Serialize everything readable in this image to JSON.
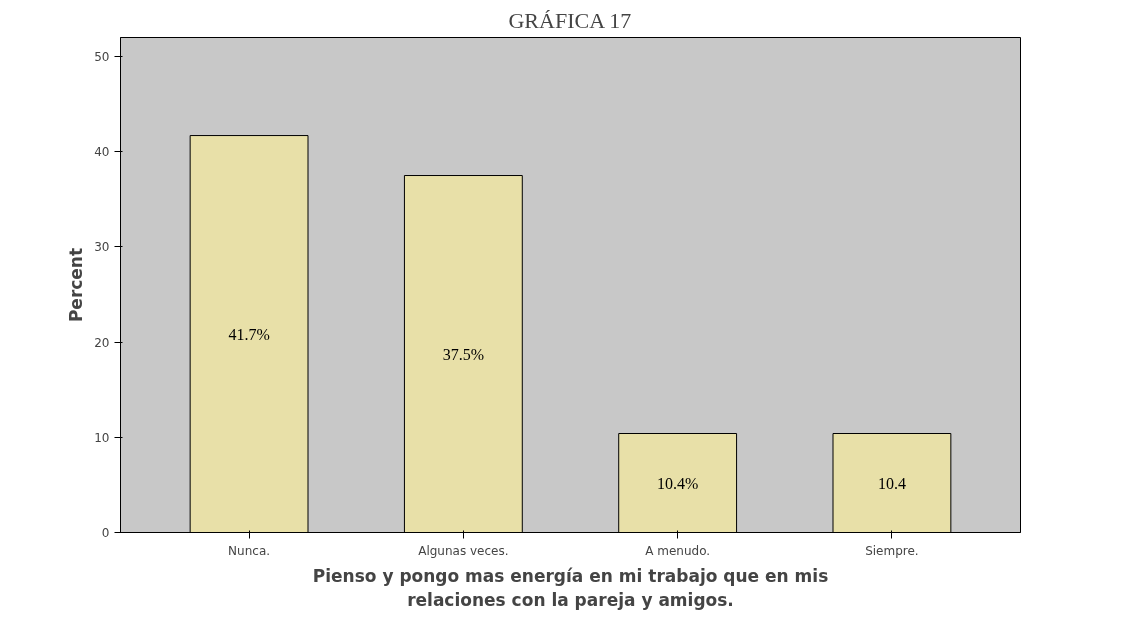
{
  "chart_data": {
    "type": "bar",
    "title": "GRÁFICA 17",
    "ylabel": "Percent",
    "xlabel": "Pienso y pongo mas energía en mi trabajo que en mis\nrelaciones con la pareja y amigos.",
    "categories": [
      "Nunca.",
      "Algunas veces.",
      "A menudo.",
      "Siempre."
    ],
    "values": [
      41.7,
      37.5,
      10.4,
      10.4
    ],
    "value_labels": [
      "41.7%",
      "37.5%",
      "10.4%",
      "10.4"
    ],
    "color": "#e8e0a8",
    "ylim": [
      0,
      52
    ],
    "yticks": [
      0,
      10,
      20,
      30,
      40,
      50
    ],
    "grid": false
  }
}
